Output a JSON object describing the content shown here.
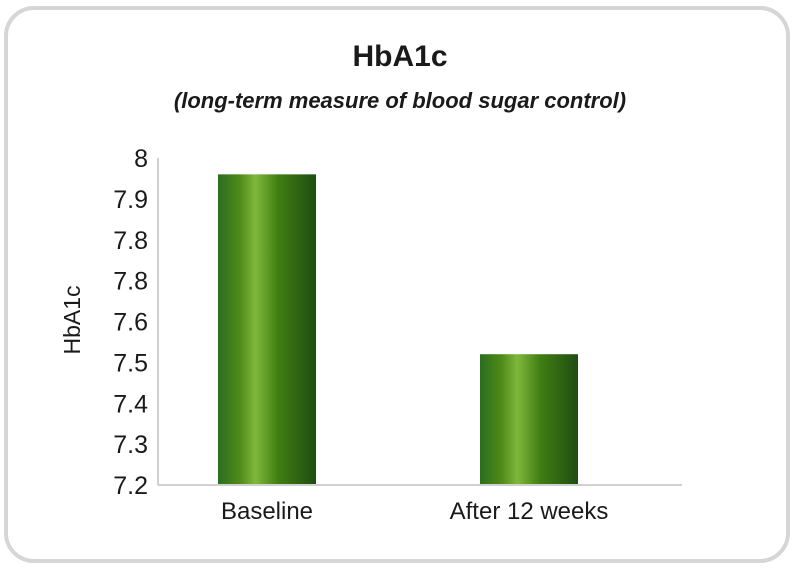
{
  "chart_data": {
    "type": "bar",
    "title": "HbA1c",
    "subtitle": "(long-term measure of blood sugar control)",
    "xlabel": "",
    "ylabel": "HbA1c",
    "categories": [
      "Baseline",
      "After 12 weeks"
    ],
    "values": [
      7.96,
      7.52
    ],
    "ylim": [
      7.2,
      8
    ],
    "yticks": [
      "8",
      "7.9",
      "7.8",
      "7.8",
      "7.6",
      "7.5",
      "7.4",
      "7.3",
      "7.2"
    ],
    "grid": false,
    "bar_gradient": [
      "#2a6e1e",
      "#4f8a1a",
      "#7fb83a",
      "#3f7d12",
      "#1f4d12"
    ]
  }
}
